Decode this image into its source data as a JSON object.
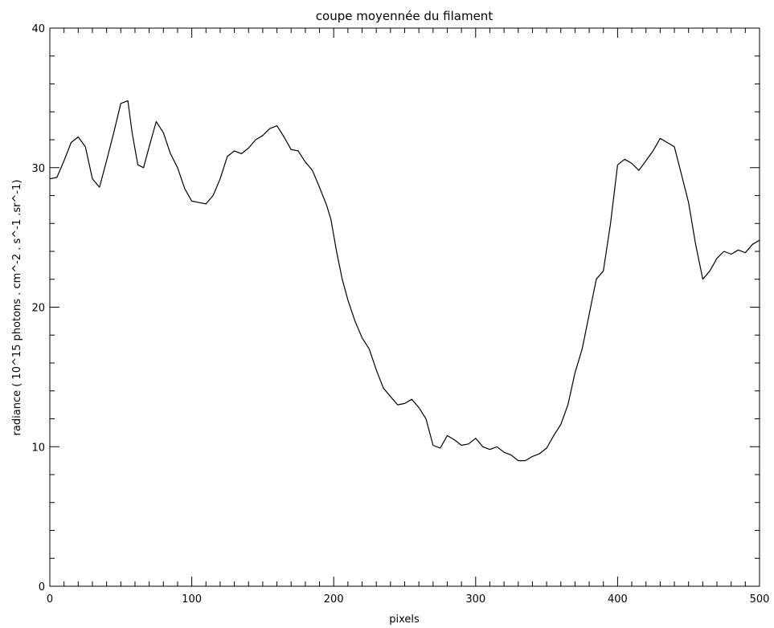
{
  "chart_data": {
    "type": "line",
    "title": "coupe moyennée du filament",
    "xlabel": "pixels",
    "ylabel": "radiance ( 10^15 photons . cm^-2 . s^-1 .sr^-1)",
    "xlim": [
      0,
      500
    ],
    "ylim": [
      0,
      40
    ],
    "xticks": [
      0,
      100,
      200,
      300,
      400,
      500
    ],
    "yticks": [
      0,
      10,
      20,
      30,
      40
    ],
    "x_minor_step": 10,
    "y_minor_step": 2,
    "grid": false,
    "line_color": "#000000",
    "series": [
      {
        "x": [
          0,
          5,
          10,
          15,
          20,
          25,
          30,
          35,
          40,
          45,
          50,
          55,
          58,
          62,
          66,
          70,
          75,
          80,
          85,
          90,
          95,
          100,
          105,
          110,
          115,
          120,
          125,
          130,
          135,
          140,
          145,
          150,
          155,
          160,
          165,
          170,
          175,
          180,
          185,
          190,
          195,
          198,
          202,
          206,
          210,
          215,
          220,
          225,
          230,
          235,
          240,
          245,
          250,
          255,
          260,
          265,
          270,
          275,
          280,
          285,
          290,
          295,
          300,
          305,
          310,
          315,
          320,
          325,
          330,
          335,
          340,
          345,
          350,
          355,
          360,
          365,
          370,
          375,
          380,
          385,
          390,
          395,
          400,
          405,
          410,
          415,
          420,
          425,
          430,
          435,
          440,
          445,
          450,
          455,
          460,
          465,
          470,
          475,
          480,
          485,
          490,
          495,
          500
        ],
        "y": [
          29.2,
          29.3,
          30.5,
          31.8,
          32.2,
          31.5,
          29.2,
          28.6,
          30.5,
          32.5,
          34.6,
          34.8,
          32.5,
          30.2,
          30.0,
          31.5,
          33.3,
          32.5,
          31.0,
          30.0,
          28.5,
          27.6,
          27.5,
          27.4,
          28.0,
          29.2,
          30.8,
          31.2,
          31.0,
          31.4,
          32.0,
          32.3,
          32.8,
          33.0,
          32.2,
          31.3,
          31.2,
          30.4,
          29.8,
          28.6,
          27.3,
          26.3,
          24.0,
          22.0,
          20.5,
          19.0,
          17.8,
          17.0,
          15.5,
          14.2,
          13.6,
          13.0,
          13.1,
          13.4,
          12.8,
          12.0,
          10.1,
          9.9,
          10.8,
          10.5,
          10.1,
          10.2,
          10.6,
          10.0,
          9.8,
          10.0,
          9.6,
          9.4,
          9.0,
          9.0,
          9.3,
          9.5,
          9.9,
          10.8,
          11.6,
          13.0,
          15.3,
          17.0,
          19.5,
          22.0,
          22.6,
          26.0,
          30.2,
          30.6,
          30.3,
          29.8,
          30.5,
          31.2,
          32.1,
          31.8,
          31.5,
          29.5,
          27.5,
          24.5,
          22.0,
          22.6,
          23.5,
          24.0,
          23.8,
          24.1,
          23.9,
          24.5,
          24.8
        ]
      }
    ]
  }
}
